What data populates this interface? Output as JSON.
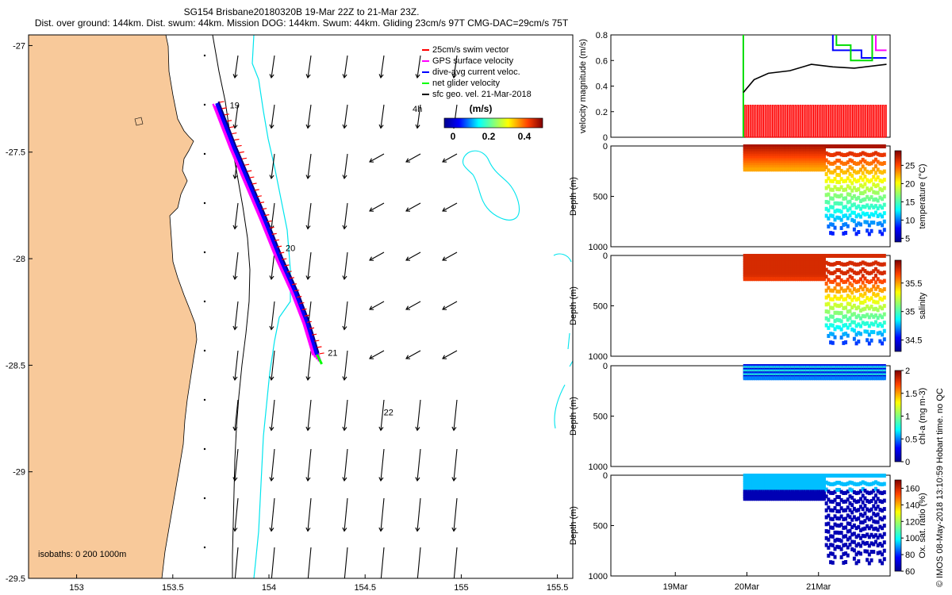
{
  "header": {
    "title_line1": "SG154 Brisbane20180320B 19-Mar 22Z to 21-Mar 23Z.",
    "title_line2": "Dist. over ground: 144km. Dist. swum: 44km. Mission DOG: 144km. Swum: 44km. Gliding 23cm/s 97T CMG-DAC=29cm/s 75T"
  },
  "map": {
    "x_ticks": [
      "153",
      "153.5",
      "154",
      "154.5",
      "155",
      "155.5"
    ],
    "y_ticks": [
      "-27",
      "-27.5",
      "-28",
      "-28.5",
      "-29",
      "-29.5"
    ],
    "xlim": [
      152.75,
      155.58
    ],
    "ylim": [
      -29.5,
      -26.95
    ],
    "isobath_label": "isobaths: 0   200  1000m",
    "day_labels": [
      {
        "text": "19",
        "lon": 153.78,
        "lat": -27.28
      },
      {
        "text": "20",
        "lon": 154.07,
        "lat": -27.95
      },
      {
        "text": "21",
        "lon": 154.29,
        "lat": -28.44
      },
      {
        "text": "22",
        "lon": 154.58,
        "lat": -28.72
      }
    ],
    "legend": {
      "items": [
        {
          "label": "25cm/s swim vector",
          "color": "#ff0000"
        },
        {
          "label": "GPS surface velocity",
          "color": "#ff00ff"
        },
        {
          "label": "dive-avg current veloc.",
          "color": "#0000ff"
        },
        {
          "label": "net glider velocity",
          "color": "#00ff00"
        },
        {
          "label": "sfc geo. vel. 21-Mar-2018",
          "color": "#000000"
        }
      ],
      "hours_label": "4h",
      "colorbar_unit": "(m/s)",
      "colorbar_ticks": [
        "0",
        "0.2",
        "0.4"
      ]
    },
    "colors": {
      "land": "#f8c99a",
      "isobath200": "#000000",
      "isobath1000": "#00e5ee",
      "track": "#0000ff"
    }
  },
  "panels": {
    "velocity": {
      "ylabel": "velocity magnitude (m/s)",
      "ticks": [
        "0",
        "0.2",
        "0.4",
        "0.6",
        "0.8"
      ]
    },
    "depth_ticks": [
      "0",
      "500",
      "1000"
    ],
    "depth_label": "Depth (m)",
    "temperature": {
      "label": "temperature (°C)",
      "ticks": [
        "5",
        "10",
        "15",
        "20",
        "25"
      ]
    },
    "salinity": {
      "label": "salinity",
      "ticks": [
        "34.5",
        "35",
        "35.5"
      ]
    },
    "chl": {
      "label": "chl-a (mg m-3)",
      "ticks": [
        "0",
        "0.5",
        "1",
        "1.5",
        "2"
      ]
    },
    "oxygen": {
      "label": "Ox. sat. ratio (%)",
      "ticks": [
        "60",
        "80",
        "100",
        "120",
        "140",
        "160"
      ]
    },
    "time_ticks": [
      "19Mar",
      "20Mar",
      "21Mar"
    ]
  },
  "footer": {
    "credit": "© IMOS 08-May-2018 13:10:59 Hobart time. no QC"
  },
  "chart_data": [
    {
      "type": "scatter",
      "title": "",
      "xlabel": "",
      "ylabel": "",
      "xlim": [
        152.75,
        155.58
      ],
      "ylim": [
        -29.5,
        -26.95
      ],
      "series": [
        {
          "name": "dive-avg current veloc.",
          "x": [
            153.73,
            153.82,
            153.9,
            153.98,
            154.06,
            154.14,
            154.2,
            154.25
          ],
          "y": [
            -27.27,
            -27.48,
            -27.65,
            -27.82,
            -28.0,
            -28.16,
            -28.3,
            -28.45
          ]
        }
      ]
    },
    {
      "type": "line",
      "title": "",
      "xlabel": "",
      "ylabel": "velocity magnitude (m/s)",
      "ylim": [
        0,
        0.8
      ],
      "series": [
        {
          "name": "",
          "x": [
            "19.95",
            "20.1",
            "20.3",
            "20.6",
            "20.9",
            "21.2",
            "21.5",
            "21.95"
          ],
          "y": [
            0.35,
            0.45,
            0.5,
            0.52,
            0.57,
            0.55,
            0.54,
            0.57
          ]
        }
      ]
    },
    {
      "type": "heatmap",
      "title": "",
      "xlabel": "",
      "ylabel": "Depth (m)",
      "ylim": [
        1000,
        0
      ],
      "clim": [
        4,
        29
      ]
    },
    {
      "type": "heatmap",
      "title": "",
      "xlabel": "",
      "ylabel": "Depth (m)",
      "ylim": [
        1000,
        0
      ],
      "clim": [
        34.3,
        35.9
      ]
    },
    {
      "type": "heatmap",
      "title": "",
      "xlabel": "",
      "ylabel": "Depth (m)",
      "ylim": [
        1000,
        0
      ],
      "clim": [
        0,
        2
      ]
    },
    {
      "type": "heatmap",
      "title": "",
      "xlabel": "",
      "ylabel": "Depth (m)",
      "ylim": [
        1000,
        0
      ],
      "clim": [
        60,
        170
      ]
    }
  ]
}
